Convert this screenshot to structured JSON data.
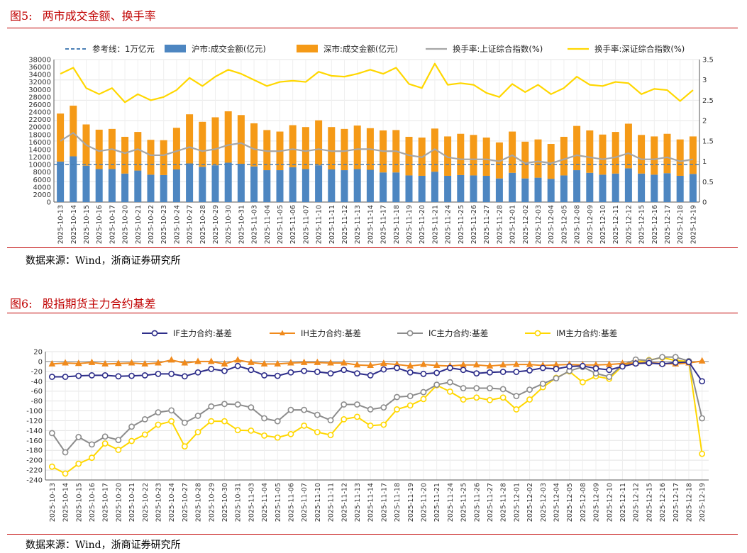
{
  "figures": [
    {
      "label": "图5:",
      "title": "两市成交金额、换手率",
      "source": "数据来源：Wind，浙商证券研究所"
    },
    {
      "label": "图6:",
      "title": "股指期货主力合约基差",
      "source": "数据来源：Wind，浙商证券研究所"
    }
  ],
  "chart_data": [
    {
      "type": "bar",
      "stacked": true,
      "categories": [
        "2025-10-13",
        "2025-10-14",
        "2025-10-15",
        "2025-10-16",
        "2025-10-17",
        "2025-10-20",
        "2025-10-21",
        "2025-10-22",
        "2025-10-23",
        "2025-10-24",
        "2025-10-27",
        "2025-10-28",
        "2025-10-29",
        "2025-10-30",
        "2025-10-31",
        "2025-11-03",
        "2025-11-04",
        "2025-11-05",
        "2025-11-06",
        "2025-11-07",
        "2025-11-10",
        "2025-11-11",
        "2025-11-12",
        "2025-11-13",
        "2025-11-14",
        "2025-11-17",
        "2025-11-18",
        "2025-11-19",
        "2025-11-20",
        "2025-11-21",
        "2025-11-24",
        "2025-11-25",
        "2025-11-26",
        "2025-11-27",
        "2025-11-28",
        "2025-12-01",
        "2025-12-02",
        "2025-12-03",
        "2025-12-04",
        "2025-12-05",
        "2025-12-08",
        "2025-12-09",
        "2025-12-10",
        "2025-12-11",
        "2025-12-12",
        "2025-12-15",
        "2025-12-16",
        "2025-12-17",
        "2025-12-18",
        "2025-12-19"
      ],
      "ylim": [
        0,
        38000
      ],
      "y_ticks": [
        0,
        2000,
        4000,
        6000,
        8000,
        10000,
        12000,
        14000,
        16000,
        18000,
        20000,
        22000,
        24000,
        26000,
        28000,
        30000,
        32000,
        34000,
        36000,
        38000
      ],
      "y2lim": [
        0,
        3.5
      ],
      "y2_ticks": [
        0,
        0.5,
        1,
        1.5,
        2,
        2.5,
        3,
        3.5
      ],
      "reference_line": {
        "name": "参考线：1万亿元",
        "value": 10000,
        "color": "#4a7fb5"
      },
      "legend_position": "top",
      "series": [
        {
          "name": "沪市:成交金额(亿元)",
          "kind": "bar",
          "axis": "left",
          "color": "#4d86c1",
          "values": [
            10800,
            12200,
            9700,
            8800,
            8800,
            7600,
            8400,
            7300,
            7200,
            8700,
            10300,
            9400,
            9800,
            10500,
            10200,
            9500,
            8500,
            8500,
            9300,
            8800,
            9800,
            8700,
            8500,
            8800,
            8600,
            7900,
            7900,
            7100,
            7000,
            8100,
            7000,
            7200,
            7100,
            7000,
            6300,
            7800,
            6300,
            6500,
            6200,
            7100,
            8500,
            7800,
            7300,
            7600,
            9000,
            7600,
            7300,
            7700,
            7000,
            7500
          ]
        },
        {
          "name": "深市:成交金额(亿元)",
          "kind": "bar",
          "axis": "left",
          "color": "#f59a17",
          "values": [
            12800,
            13500,
            11000,
            10500,
            10700,
            9800,
            10300,
            9300,
            9300,
            11100,
            13100,
            12000,
            12800,
            13700,
            13000,
            11500,
            10700,
            10300,
            11200,
            11200,
            12000,
            11300,
            11000,
            11600,
            11100,
            11200,
            11300,
            10300,
            10200,
            11500,
            10500,
            11000,
            10800,
            10200,
            9600,
            11000,
            9800,
            10200,
            9300,
            10300,
            11800,
            11300,
            10700,
            11100,
            11900,
            10300,
            10200,
            10500,
            9700,
            10000
          ]
        },
        {
          "name": "换手率:上证综合指数(%)",
          "kind": "line",
          "axis": "right",
          "color": "#a6a6a6",
          "values": [
            1.5,
            1.7,
            1.4,
            1.25,
            1.3,
            1.2,
            1.3,
            1.15,
            1.15,
            1.25,
            1.35,
            1.25,
            1.3,
            1.4,
            1.45,
            1.3,
            1.25,
            1.25,
            1.3,
            1.25,
            1.3,
            1.25,
            1.25,
            1.3,
            1.3,
            1.25,
            1.25,
            1.15,
            1.1,
            1.3,
            1.1,
            1.05,
            1.05,
            1.05,
            1.0,
            1.15,
            0.95,
            1.0,
            0.95,
            1.05,
            1.15,
            1.1,
            1.05,
            1.1,
            1.2,
            1.05,
            1.05,
            1.1,
            1.0,
            1.05
          ]
        },
        {
          "name": "换手率:深证综合指数(%)",
          "kind": "line",
          "axis": "right",
          "color": "#ffd700",
          "values": [
            3.15,
            3.3,
            2.8,
            2.65,
            2.8,
            2.45,
            2.65,
            2.5,
            2.58,
            2.75,
            3.05,
            2.85,
            3.08,
            3.25,
            3.15,
            3.0,
            2.85,
            2.95,
            2.98,
            2.95,
            3.2,
            3.1,
            3.08,
            3.15,
            3.25,
            3.15,
            3.3,
            2.9,
            2.8,
            3.4,
            2.88,
            2.92,
            2.88,
            2.68,
            2.58,
            2.9,
            2.7,
            2.88,
            2.65,
            2.8,
            3.08,
            2.88,
            2.85,
            2.95,
            2.92,
            2.65,
            2.78,
            2.75,
            2.48,
            2.75
          ]
        }
      ]
    },
    {
      "type": "line",
      "categories": [
        "2025-10-13",
        "2025-10-14",
        "2025-10-15",
        "2025-10-16",
        "2025-10-17",
        "2025-10-20",
        "2025-10-21",
        "2025-10-22",
        "2025-10-23",
        "2025-10-24",
        "2025-10-27",
        "2025-10-28",
        "2025-10-29",
        "2025-10-30",
        "2025-10-31",
        "2025-11-03",
        "2025-11-04",
        "2025-11-05",
        "2025-11-06",
        "2025-11-07",
        "2025-11-10",
        "2025-11-11",
        "2025-11-12",
        "2025-11-13",
        "2025-11-14",
        "2025-11-17",
        "2025-11-18",
        "2025-11-19",
        "2025-11-20",
        "2025-11-21",
        "2025-11-24",
        "2025-11-25",
        "2025-11-26",
        "2025-11-27",
        "2025-11-28",
        "2025-12-01",
        "2025-12-02",
        "2025-12-03",
        "2025-12-04",
        "2025-12-05",
        "2025-12-08",
        "2025-12-09",
        "2025-12-10",
        "2025-12-11",
        "2025-12-12",
        "2025-12-15",
        "2025-12-16",
        "2025-12-17",
        "2025-12-18",
        "2025-12-19"
      ],
      "ylim": [
        -240,
        20
      ],
      "y_ticks": [
        20,
        0,
        -20,
        -40,
        -60,
        -80,
        -100,
        -120,
        -140,
        -160,
        -180,
        -200,
        -220,
        -240
      ],
      "legend_position": "top",
      "series": [
        {
          "name": "IF主力合约:基差",
          "color": "#2e2e8a",
          "marker": "circle",
          "values": [
            -31,
            -31,
            -29,
            -28,
            -28,
            -30,
            -29,
            -28,
            -25,
            -25,
            -30,
            -22,
            -15,
            -19,
            -9,
            -17,
            -28,
            -29,
            -22,
            -19,
            -21,
            -24,
            -17,
            -24,
            -28,
            -16,
            -13,
            -22,
            -25,
            -23,
            -13,
            -17,
            -24,
            -22,
            -21,
            -21,
            -18,
            -13,
            -15,
            -10,
            -9,
            -14,
            -17,
            -10,
            -4,
            -3,
            -5,
            -2,
            -1,
            -40
          ]
        },
        {
          "name": "IH主力合约:基差",
          "color": "#f08a1c",
          "marker": "triangle",
          "values": [
            -5,
            -3,
            -4,
            -2,
            -5,
            -4,
            -3,
            -5,
            -3,
            3,
            -3,
            0,
            0,
            -5,
            3,
            -2,
            -5,
            -5,
            -3,
            -2,
            -2,
            -3,
            -3,
            -7,
            -8,
            -4,
            -6,
            -9,
            -6,
            -8,
            -9,
            -7,
            -7,
            -9,
            -7,
            -6,
            -6,
            -8,
            -7,
            -6,
            -7,
            -7,
            -6,
            -4,
            -3,
            -2,
            -4,
            -5,
            -3,
            1
          ]
        },
        {
          "name": "IC主力合约:基差",
          "color": "#8c8c8c",
          "marker": "circle",
          "values": [
            -145,
            -184,
            -153,
            -168,
            -152,
            -159,
            -132,
            -117,
            -103,
            -99,
            -124,
            -110,
            -91,
            -86,
            -87,
            -93,
            -115,
            -121,
            -98,
            -98,
            -108,
            -119,
            -87,
            -87,
            -97,
            -93,
            -72,
            -70,
            -62,
            -47,
            -42,
            -54,
            -54,
            -54,
            -56,
            -70,
            -57,
            -45,
            -34,
            -19,
            -11,
            -24,
            -31,
            -7,
            4,
            2,
            9,
            9,
            1,
            -115
          ]
        },
        {
          "name": "IM主力合约:基差",
          "color": "#ffd700",
          "marker": "circle",
          "values": [
            -213,
            -227,
            -207,
            -195,
            -166,
            -179,
            -161,
            -148,
            -128,
            -121,
            -172,
            -143,
            -121,
            -121,
            -139,
            -140,
            -150,
            -154,
            -147,
            -130,
            -143,
            -149,
            -117,
            -112,
            -130,
            -128,
            -97,
            -89,
            -76,
            -48,
            -61,
            -77,
            -73,
            -78,
            -73,
            -97,
            -77,
            -52,
            -33,
            -20,
            -42,
            -30,
            -35,
            -9,
            -1,
            3,
            8,
            2,
            0,
            -187
          ]
        }
      ]
    }
  ]
}
